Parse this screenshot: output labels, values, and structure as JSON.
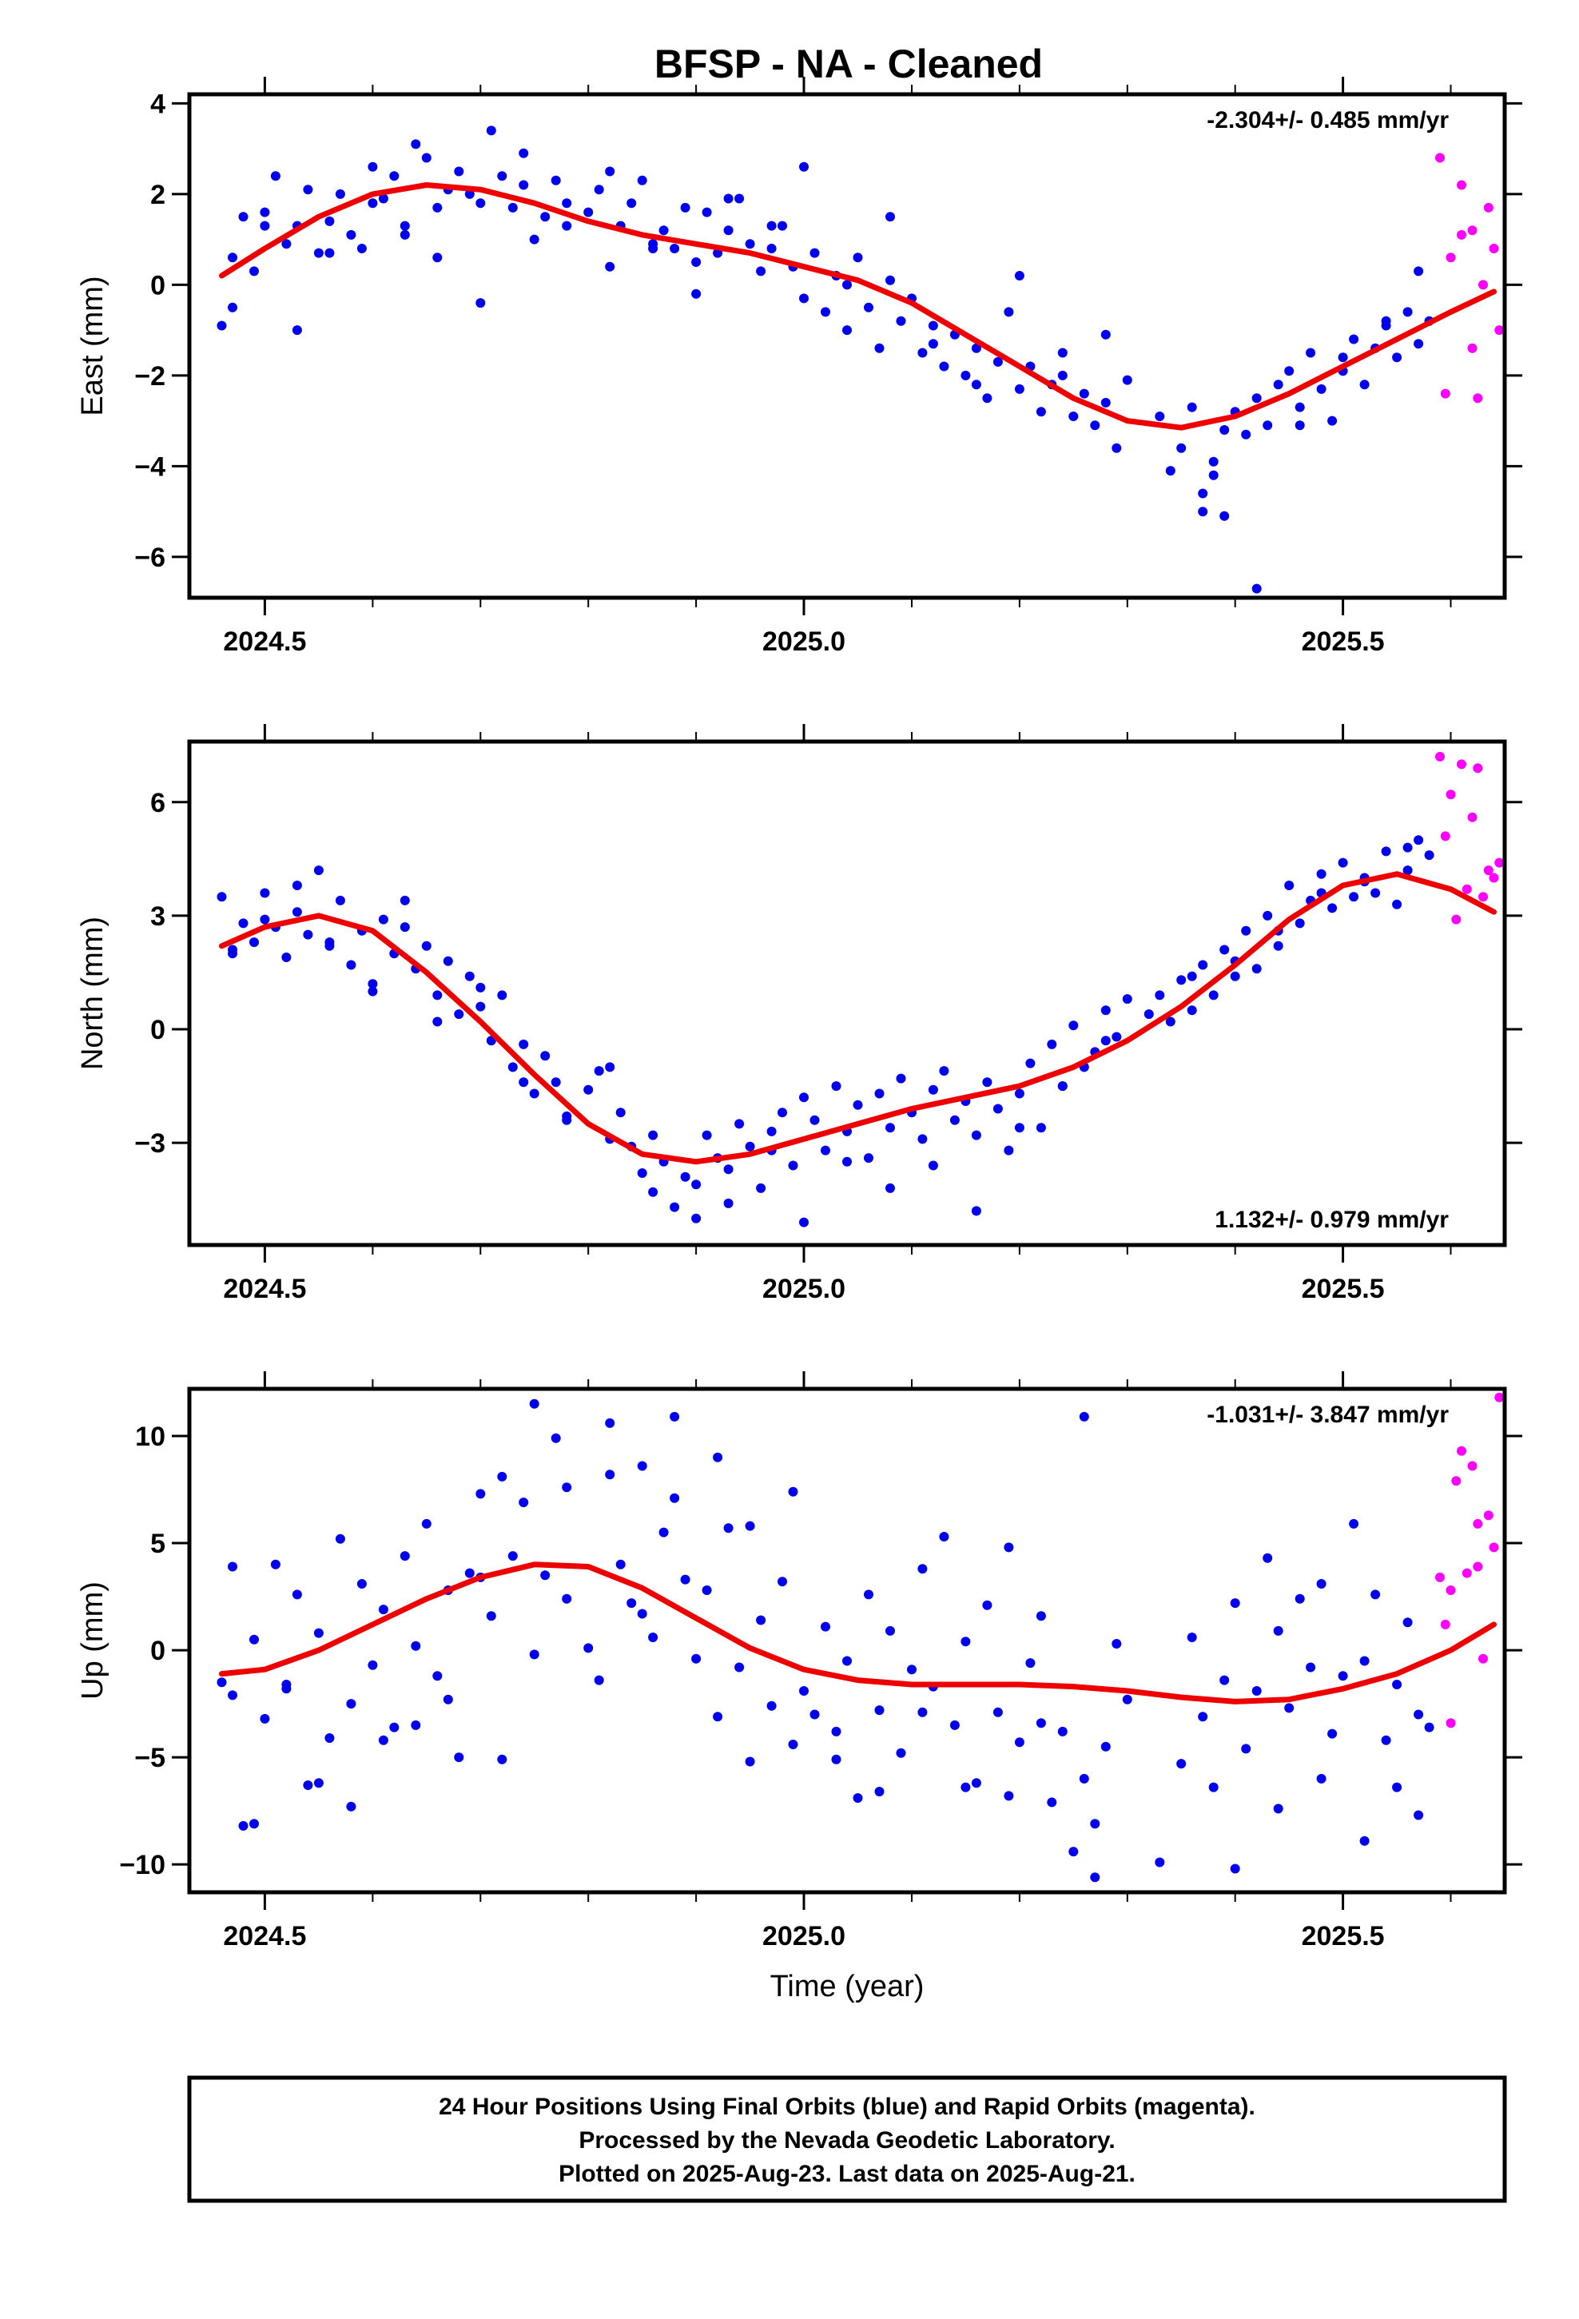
{
  "title": "BFSP  - NA - Cleaned",
  "colors": {
    "final": "#0000ee",
    "rapid": "#ff00ff",
    "fit": "#ee0000",
    "axis": "#000000"
  },
  "footer": {
    "line1": "24 Hour Positions Using Final Orbits (blue) and Rapid Orbits (magenta).",
    "line2": "Processed by the Nevada Geodetic Laboratory.",
    "line3": "Plotted on 2025-Aug-23. Last data on 2025-Aug-21."
  },
  "chart_data": [
    {
      "type": "scatter",
      "ylabel": "East (mm)",
      "xlabel": "",
      "rate_label": "-2.304+/- 0.485 mm/yr",
      "rate_position": "top-right",
      "xlim": [
        2024.43,
        2025.65
      ],
      "ylim": [
        -6.9,
        4.2
      ],
      "xticks": [
        2024.5,
        2025.0,
        2025.5
      ],
      "xtick_labels": [
        "2024.5",
        "2025.0",
        "2025.5"
      ],
      "yticks": [
        -6,
        -4,
        -2,
        0,
        2,
        4
      ],
      "ytick_labels": [
        "−6",
        "−4",
        "−2",
        "0",
        "2",
        "4"
      ],
      "fit_x": [
        2024.46,
        2024.5,
        2024.55,
        2024.6,
        2024.65,
        2024.7,
        2024.75,
        2024.8,
        2024.85,
        2024.9,
        2024.95,
        2025.0,
        2025.05,
        2025.1,
        2025.15,
        2025.2,
        2025.25,
        2025.3,
        2025.35,
        2025.4,
        2025.45,
        2025.5,
        2025.55,
        2025.6,
        2025.64
      ],
      "fit_y": [
        0.2,
        0.8,
        1.5,
        2.0,
        2.2,
        2.1,
        1.8,
        1.4,
        1.1,
        0.9,
        0.7,
        0.4,
        0.1,
        -0.4,
        -1.1,
        -1.8,
        -2.5,
        -3.0,
        -3.15,
        -2.9,
        -2.4,
        -1.8,
        -1.2,
        -0.6,
        -0.15
      ],
      "final_x": [
        2024.46,
        2024.47,
        2024.48,
        2024.49,
        2024.5,
        2024.51,
        2024.52,
        2024.53,
        2024.54,
        2024.55,
        2024.56,
        2024.57,
        2024.58,
        2024.59,
        2024.6,
        2024.61,
        2024.62,
        2024.63,
        2024.64,
        2024.65,
        2024.66,
        2024.67,
        2024.68,
        2024.69,
        2024.7,
        2024.71,
        2024.72,
        2024.73,
        2024.74,
        2024.75,
        2024.76,
        2024.77,
        2024.78,
        2024.8,
        2024.81,
        2024.82,
        2024.83,
        2024.84,
        2024.85,
        2024.86,
        2024.87,
        2024.88,
        2024.89,
        2024.9,
        2024.91,
        2024.92,
        2024.93,
        2024.94,
        2024.95,
        2024.96,
        2024.97,
        2024.98,
        2024.99,
        2025.0,
        2025.01,
        2025.02,
        2025.03,
        2025.04,
        2025.05,
        2025.06,
        2025.07,
        2025.08,
        2025.09,
        2025.1,
        2025.11,
        2025.12,
        2025.13,
        2025.14,
        2025.15,
        2025.16,
        2025.17,
        2025.18,
        2025.19,
        2025.2,
        2025.21,
        2025.22,
        2025.23,
        2025.24,
        2025.25,
        2025.26,
        2025.27,
        2025.28,
        2025.29,
        2025.3,
        2025.33,
        2025.34,
        2025.35,
        2025.36,
        2025.37,
        2025.38,
        2025.39,
        2025.4,
        2025.41,
        2025.42,
        2025.43,
        2025.44,
        2025.45,
        2025.46,
        2025.47,
        2025.48,
        2025.49,
        2025.5,
        2025.51,
        2025.52,
        2025.53,
        2025.54,
        2025.55,
        2025.56,
        2025.57,
        2025.58,
        2024.47,
        2024.5,
        2024.53,
        2024.56,
        2024.6,
        2024.63,
        2024.66,
        2024.7,
        2024.74,
        2024.78,
        2024.82,
        2024.86,
        2024.9,
        2024.93,
        2024.97,
        2025.0,
        2025.04,
        2025.08,
        2025.12,
        2025.16,
        2025.2,
        2025.24,
        2025.28,
        2025.37,
        2025.38,
        2025.39,
        2025.42,
        2025.46,
        2025.5,
        2025.54,
        2025.57
      ],
      "final_y": [
        -0.9,
        0.6,
        1.5,
        0.3,
        1.6,
        2.4,
        0.9,
        1.3,
        2.1,
        0.7,
        1.4,
        2.0,
        1.1,
        0.8,
        2.6,
        1.9,
        2.4,
        1.3,
        3.1,
        2.8,
        1.7,
        2.1,
        2.5,
        2.0,
        1.8,
        3.4,
        2.4,
        1.7,
        2.2,
        1.0,
        1.5,
        2.3,
        1.8,
        1.6,
        2.1,
        0.4,
        1.3,
        1.8,
        2.3,
        0.9,
        1.2,
        0.8,
        1.7,
        0.5,
        1.6,
        0.7,
        1.2,
        1.9,
        0.9,
        0.3,
        0.8,
        1.3,
        0.4,
        -0.3,
        0.7,
        -0.6,
        0.2,
        -1.0,
        0.6,
        -0.5,
        -1.4,
        0.1,
        -0.8,
        -0.3,
        -1.5,
        -0.9,
        -1.8,
        -1.1,
        -2.0,
        -1.4,
        -2.5,
        -1.7,
        -0.6,
        -2.3,
        -1.8,
        -2.8,
        -2.2,
        -1.5,
        -2.9,
        -2.4,
        -3.1,
        -2.6,
        -3.6,
        -2.1,
        -2.9,
        -4.1,
        -3.6,
        -2.7,
        -4.6,
        -3.9,
        -3.2,
        -2.8,
        -3.3,
        -2.5,
        -3.1,
        -2.2,
        -1.9,
        -2.7,
        -1.5,
        -2.3,
        -3.0,
        -1.6,
        -1.2,
        -2.2,
        -1.4,
        -0.9,
        -1.6,
        -0.6,
        -1.3,
        -0.8,
        -0.5,
        1.3,
        -1.0,
        0.7,
        1.8,
        1.1,
        0.6,
        -0.4,
        2.9,
        1.3,
        2.5,
        0.8,
        -0.2,
        1.9,
        1.3,
        2.6,
        0.0,
        1.5,
        -1.3,
        -2.2,
        0.2,
        -2.0,
        -1.1,
        -5.0,
        -4.2,
        -5.1,
        -6.7,
        -3.1,
        -1.9,
        -0.8,
        0.3,
        1.0
      ],
      "rapid_x": [
        2025.59,
        2025.6,
        2025.61,
        2025.62,
        2025.625,
        2025.63,
        2025.64,
        2025.645,
        2025.595,
        2025.61,
        2025.62,
        2025.635
      ],
      "rapid_y": [
        2.8,
        0.6,
        1.1,
        1.2,
        -2.5,
        0.0,
        0.8,
        -1.0,
        -2.4,
        2.2,
        -1.4,
        1.7
      ]
    },
    {
      "type": "scatter",
      "ylabel": "North (mm)",
      "xlabel": "",
      "rate_label": "1.132+/- 0.979 mm/yr",
      "rate_position": "bottom-right",
      "xlim": [
        2024.43,
        2025.65
      ],
      "ylim": [
        -5.7,
        7.6
      ],
      "xticks": [
        2024.5,
        2025.0,
        2025.5
      ],
      "xtick_labels": [
        "2024.5",
        "2025.0",
        "2025.5"
      ],
      "yticks": [
        -3,
        0,
        3,
        6
      ],
      "ytick_labels": [
        "−3",
        "0",
        "3",
        "6"
      ],
      "fit_x": [
        2024.46,
        2024.5,
        2024.55,
        2024.6,
        2024.65,
        2024.7,
        2024.75,
        2024.8,
        2024.85,
        2024.9,
        2024.95,
        2025.0,
        2025.05,
        2025.1,
        2025.15,
        2025.2,
        2025.25,
        2025.3,
        2025.35,
        2025.4,
        2025.45,
        2025.5,
        2025.55,
        2025.6,
        2025.64
      ],
      "fit_y": [
        2.2,
        2.7,
        3.0,
        2.6,
        1.5,
        0.2,
        -1.2,
        -2.5,
        -3.3,
        -3.5,
        -3.3,
        -2.9,
        -2.5,
        -2.1,
        -1.8,
        -1.5,
        -1.0,
        -0.3,
        0.6,
        1.7,
        2.9,
        3.8,
        4.1,
        3.7,
        3.1
      ],
      "final_x": [
        2024.46,
        2024.47,
        2024.48,
        2024.49,
        2024.5,
        2024.51,
        2024.52,
        2024.53,
        2024.54,
        2024.55,
        2024.56,
        2024.57,
        2024.58,
        2024.59,
        2024.6,
        2024.61,
        2024.62,
        2024.63,
        2024.64,
        2024.65,
        2024.66,
        2024.67,
        2024.68,
        2024.69,
        2024.7,
        2024.71,
        2024.72,
        2024.73,
        2024.74,
        2024.75,
        2024.76,
        2024.77,
        2024.78,
        2024.8,
        2024.81,
        2024.82,
        2024.83,
        2024.84,
        2024.85,
        2024.86,
        2024.87,
        2024.88,
        2024.89,
        2024.9,
        2024.91,
        2024.92,
        2024.93,
        2024.94,
        2024.95,
        2024.96,
        2024.97,
        2024.98,
        2024.99,
        2025.0,
        2025.01,
        2025.02,
        2025.03,
        2025.04,
        2025.05,
        2025.06,
        2025.07,
        2025.08,
        2025.09,
        2025.1,
        2025.11,
        2025.12,
        2025.13,
        2025.14,
        2025.15,
        2025.16,
        2025.17,
        2025.18,
        2025.19,
        2025.2,
        2025.21,
        2025.22,
        2025.23,
        2025.24,
        2025.25,
        2025.26,
        2025.27,
        2025.28,
        2025.29,
        2025.3,
        2025.33,
        2025.34,
        2025.35,
        2025.36,
        2025.37,
        2025.38,
        2025.39,
        2025.4,
        2025.41,
        2025.42,
        2025.43,
        2025.44,
        2025.45,
        2025.46,
        2025.47,
        2025.48,
        2025.49,
        2025.5,
        2025.51,
        2025.52,
        2025.53,
        2025.54,
        2025.55,
        2025.56,
        2025.57,
        2025.58,
        2024.47,
        2024.5,
        2024.53,
        2024.56,
        2024.6,
        2024.63,
        2024.66,
        2024.7,
        2024.74,
        2024.78,
        2024.82,
        2024.86,
        2024.9,
        2024.93,
        2024.97,
        2025.0,
        2025.04,
        2025.08,
        2025.12,
        2025.16,
        2025.2,
        2025.24,
        2025.28,
        2025.32,
        2025.36,
        2025.4,
        2025.44,
        2025.48,
        2025.52,
        2025.56
      ],
      "final_y": [
        3.5,
        2.1,
        2.8,
        2.3,
        3.6,
        2.7,
        1.9,
        3.1,
        2.5,
        4.2,
        2.2,
        3.4,
        1.7,
        2.6,
        1.2,
        2.9,
        2.0,
        3.4,
        1.6,
        2.2,
        0.9,
        1.8,
        0.4,
        1.4,
        0.6,
        -0.3,
        0.9,
        -1.0,
        -0.4,
        -1.7,
        -0.7,
        -1.4,
        -2.3,
        -1.6,
        -1.1,
        -2.9,
        -2.2,
        -3.1,
        -3.8,
        -4.3,
        -3.5,
        -4.7,
        -3.9,
        -4.1,
        -2.8,
        -3.4,
        -3.7,
        -2.5,
        -3.1,
        -4.2,
        -2.7,
        -2.2,
        -3.6,
        -1.8,
        -2.4,
        -3.2,
        -1.5,
        -2.7,
        -2.0,
        -3.4,
        -1.7,
        -2.6,
        -1.3,
        -2.2,
        -2.9,
        -1.6,
        -1.1,
        -2.4,
        -1.9,
        -2.8,
        -1.4,
        -2.1,
        -3.2,
        -1.7,
        -0.9,
        -2.6,
        -0.4,
        -1.5,
        0.1,
        -1.0,
        -0.6,
        0.5,
        -0.2,
        0.8,
        0.9,
        0.2,
        1.3,
        0.5,
        1.7,
        0.9,
        2.1,
        1.4,
        2.6,
        1.6,
        3.0,
        2.2,
        3.8,
        2.8,
        3.4,
        4.1,
        3.2,
        4.4,
        3.5,
        4.0,
        3.6,
        4.7,
        3.3,
        4.2,
        5.0,
        4.6,
        2.0,
        2.9,
        3.8,
        2.3,
        1.0,
        2.7,
        0.2,
        1.1,
        -1.4,
        -2.4,
        -1.0,
        -2.8,
        -5.0,
        -4.6,
        -3.2,
        -5.1,
        -3.5,
        -4.2,
        -3.6,
        -4.8,
        -2.6,
        -1.5,
        -0.3,
        0.4,
        1.4,
        1.8,
        2.6,
        3.6,
        3.9,
        4.8
      ],
      "rapid_x": [
        2025.59,
        2025.6,
        2025.61,
        2025.62,
        2025.625,
        2025.63,
        2025.64,
        2025.645,
        2025.595,
        2025.605,
        2025.615,
        2025.635
      ],
      "rapid_y": [
        7.2,
        6.2,
        7.0,
        5.6,
        6.9,
        3.5,
        4.0,
        4.4,
        5.1,
        2.9,
        3.7,
        4.2
      ]
    },
    {
      "type": "scatter",
      "ylabel": "Up (mm)",
      "xlabel": "Time (year)",
      "rate_label": "-1.031+/- 3.847 mm/yr",
      "rate_position": "top-right",
      "xlim": [
        2024.43,
        2025.65
      ],
      "ylim": [
        -11.3,
        12.2
      ],
      "xticks": [
        2024.5,
        2025.0,
        2025.5
      ],
      "xtick_labels": [
        "2024.5",
        "2025.0",
        "2025.5"
      ],
      "yticks": [
        -10,
        -5,
        0,
        5,
        10
      ],
      "ytick_labels": [
        "−10",
        "−5",
        "0",
        "5",
        "10"
      ],
      "fit_x": [
        2024.46,
        2024.5,
        2024.55,
        2024.6,
        2024.65,
        2024.7,
        2024.75,
        2024.8,
        2024.85,
        2024.9,
        2024.95,
        2025.0,
        2025.05,
        2025.1,
        2025.15,
        2025.2,
        2025.25,
        2025.3,
        2025.35,
        2025.4,
        2025.45,
        2025.5,
        2025.55,
        2025.6,
        2025.64
      ],
      "fit_y": [
        -1.1,
        -0.9,
        0.0,
        1.2,
        2.4,
        3.4,
        4.0,
        3.9,
        2.9,
        1.5,
        0.1,
        -0.9,
        -1.4,
        -1.6,
        -1.6,
        -1.6,
        -1.7,
        -1.9,
        -2.2,
        -2.4,
        -2.3,
        -1.8,
        -1.1,
        0.0,
        1.2
      ],
      "final_x": [
        2024.46,
        2024.47,
        2024.48,
        2024.49,
        2024.5,
        2024.51,
        2024.52,
        2024.53,
        2024.54,
        2024.55,
        2024.56,
        2024.57,
        2024.58,
        2024.59,
        2024.6,
        2024.61,
        2024.62,
        2024.63,
        2024.64,
        2024.65,
        2024.66,
        2024.67,
        2024.68,
        2024.69,
        2024.7,
        2024.71,
        2024.72,
        2024.73,
        2024.74,
        2024.75,
        2024.76,
        2024.77,
        2024.78,
        2024.8,
        2024.81,
        2024.82,
        2024.83,
        2024.84,
        2024.85,
        2024.86,
        2024.87,
        2024.88,
        2024.89,
        2024.9,
        2024.91,
        2024.92,
        2024.93,
        2024.94,
        2024.95,
        2024.96,
        2024.97,
        2024.98,
        2024.99,
        2025.0,
        2025.01,
        2025.02,
        2025.03,
        2025.04,
        2025.05,
        2025.06,
        2025.07,
        2025.08,
        2025.09,
        2025.1,
        2025.11,
        2025.12,
        2025.13,
        2025.14,
        2025.15,
        2025.16,
        2025.17,
        2025.18,
        2025.19,
        2025.2,
        2025.21,
        2025.22,
        2025.23,
        2025.24,
        2025.25,
        2025.26,
        2025.27,
        2025.28,
        2025.29,
        2025.3,
        2025.35,
        2025.36,
        2025.37,
        2025.38,
        2025.39,
        2025.4,
        2025.41,
        2025.42,
        2025.43,
        2025.44,
        2025.45,
        2025.46,
        2025.47,
        2025.48,
        2025.49,
        2025.5,
        2025.51,
        2025.52,
        2025.53,
        2025.54,
        2025.55,
        2025.56,
        2025.57,
        2025.58,
        2024.47,
        2024.49,
        2024.52,
        2024.55,
        2024.58,
        2024.61,
        2024.64,
        2024.67,
        2024.7,
        2024.72,
        2024.75,
        2024.78,
        2024.82,
        2024.85,
        2024.88,
        2024.92,
        2024.95,
        2024.99,
        2025.03,
        2025.07,
        2025.11,
        2025.15,
        2025.19,
        2025.22,
        2025.26,
        2025.27,
        2025.33,
        2025.4,
        2025.44,
        2025.48,
        2025.52,
        2025.55,
        2025.57
      ],
      "final_y": [
        -1.5,
        3.9,
        -8.2,
        0.5,
        -3.2,
        4.0,
        -1.8,
        2.6,
        -6.3,
        0.8,
        -4.1,
        5.2,
        -2.5,
        3.1,
        -0.7,
        1.9,
        -3.6,
        4.4,
        0.2,
        5.9,
        -1.2,
        2.8,
        -5.0,
        3.6,
        7.3,
        1.6,
        8.1,
        4.4,
        6.9,
        -0.2,
        3.5,
        9.9,
        2.4,
        0.1,
        -1.4,
        10.6,
        4.0,
        2.2,
        8.6,
        0.6,
        5.5,
        7.1,
        3.3,
        -0.4,
        2.8,
        -3.1,
        5.7,
        -0.8,
        -5.2,
        1.4,
        -2.6,
        3.2,
        -4.4,
        -1.9,
        -3.0,
        1.1,
        -5.1,
        -0.5,
        -6.9,
        2.6,
        -2.8,
        0.9,
        -4.8,
        -0.9,
        3.8,
        -1.7,
        5.3,
        -3.5,
        0.4,
        -6.2,
        2.1,
        -2.9,
        4.8,
        -4.3,
        -0.6,
        1.6,
        -7.1,
        -3.8,
        -9.4,
        -6.0,
        -10.6,
        -4.5,
        0.3,
        -2.3,
        -5.3,
        0.6,
        -3.1,
        -6.4,
        -1.4,
        2.2,
        -4.6,
        -1.9,
        4.3,
        0.9,
        -2.7,
        2.4,
        -0.8,
        3.1,
        -3.9,
        -1.2,
        5.9,
        -0.5,
        2.6,
        -4.2,
        -1.6,
        1.3,
        -3.0,
        -3.6,
        -2.1,
        -8.1,
        -1.6,
        -6.2,
        -7.3,
        -4.2,
        -3.5,
        -2.3,
        3.4,
        -5.1,
        11.5,
        7.6,
        8.2,
        1.7,
        10.9,
        9.0,
        5.8,
        7.4,
        -3.8,
        -6.6,
        -2.9,
        -6.4,
        -6.8,
        -3.4,
        10.9,
        -8.1,
        -9.9,
        -10.2,
        -7.4,
        -6.0,
        -8.9,
        -6.4,
        -7.7,
        -10.1,
        2.2
      ],
      "rapid_x": [
        2025.59,
        2025.595,
        2025.6,
        2025.605,
        2025.61,
        2025.615,
        2025.62,
        2025.625,
        2025.63,
        2025.635,
        2025.64,
        2025.645,
        2025.6,
        2025.625
      ],
      "rapid_y": [
        3.4,
        1.2,
        -3.4,
        7.9,
        9.3,
        3.6,
        8.6,
        5.9,
        -0.4,
        6.3,
        4.8,
        11.8,
        2.8,
        3.9
      ]
    }
  ]
}
